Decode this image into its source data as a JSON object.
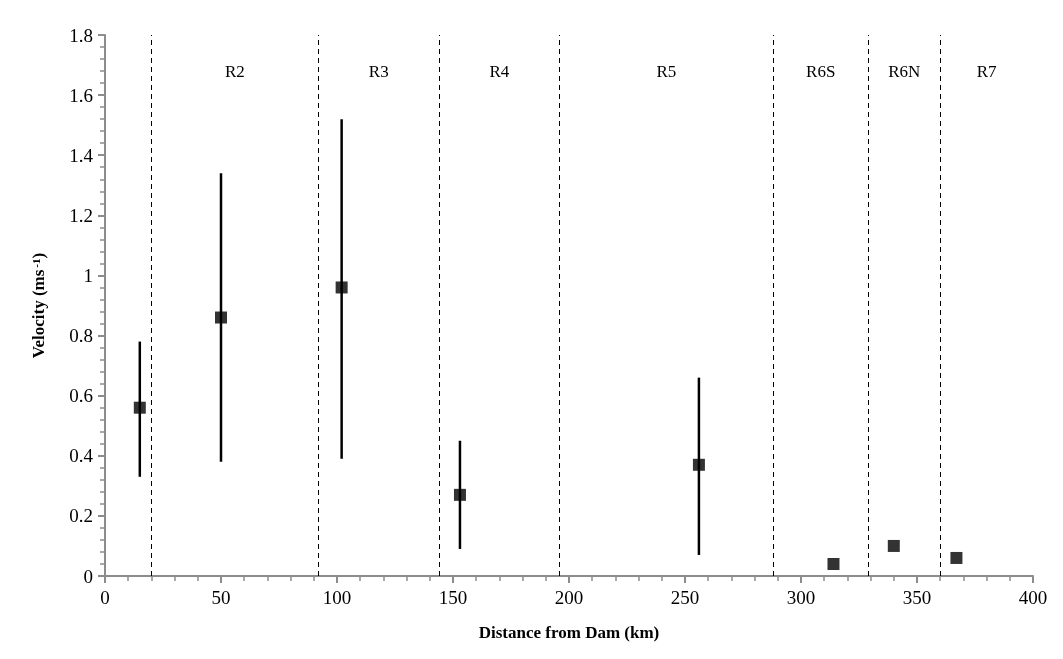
{
  "chart_data": {
    "type": "scatter",
    "xlabel": "Distance from Dam (km)",
    "ylabel": "Velocity (ms$^{-1}$)",
    "x": [
      15,
      50,
      102,
      153,
      256,
      314,
      340,
      367
    ],
    "values": [
      0.56,
      0.86,
      0.96,
      0.27,
      0.37,
      0.04,
      0.1,
      0.06
    ],
    "errors": [
      [
        0.33,
        0.78
      ],
      [
        0.38,
        1.34
      ],
      [
        0.39,
        1.52
      ],
      [
        0.09,
        0.45
      ],
      [
        0.07,
        0.66
      ],
      null,
      null,
      null
    ],
    "color": "#000000",
    "marker": "square",
    "grid": false,
    "xlim": [
      0,
      400
    ],
    "xticks": [
      0,
      50,
      100,
      150,
      200,
      250,
      300,
      350,
      400
    ],
    "ylim": [
      0,
      1.8
    ],
    "yticks": [
      0,
      0.2,
      0.4,
      0.6,
      0.8,
      1,
      1.2,
      1.4,
      1.6,
      1.8
    ],
    "ref_lines": [
      {
        "axis": "x",
        "value": 20,
        "color": "#000000",
        "line_style": "dashed"
      },
      {
        "axis": "x",
        "value": 92,
        "color": "#000000",
        "line_style": "dashed"
      },
      {
        "axis": "x",
        "value": 144,
        "color": "#000000",
        "line_style": "dashed"
      },
      {
        "axis": "x",
        "value": 196,
        "color": "#000000",
        "line_style": "dashed"
      },
      {
        "axis": "x",
        "value": 288,
        "color": "#000000",
        "line_style": "dashed"
      },
      {
        "axis": "x",
        "value": 329,
        "color": "#000000",
        "line_style": "dashed"
      },
      {
        "axis": "x",
        "value": 360,
        "color": "#000000",
        "line_style": "dashed"
      }
    ],
    "annotations": [
      "R2",
      "R3",
      "R4",
      "R5",
      "R6S",
      "R6N",
      "R7"
    ]
  }
}
